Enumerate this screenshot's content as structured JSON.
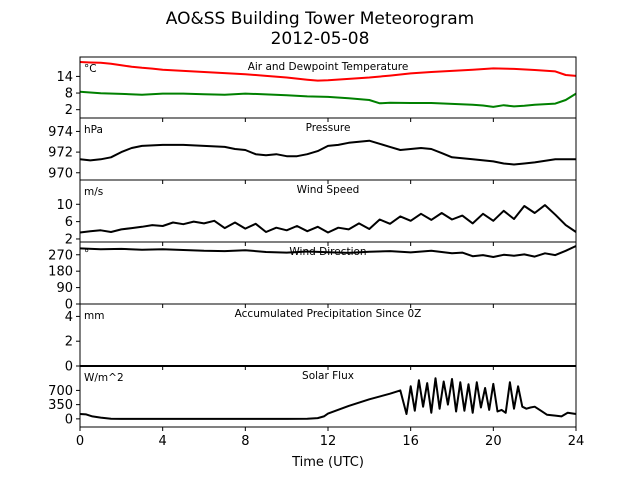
{
  "figure": {
    "title_line1": "AO&SS Building Tower Meteorogram",
    "title_line2": "2012-05-08",
    "xlabel": "Time (UTC)"
  },
  "chart_data": [
    {
      "type": "line",
      "title": "Air and Dewpoint Temperature",
      "unit_label": "°C",
      "xlim": [
        0,
        24
      ],
      "ylim": [
        -1,
        21
      ],
      "yticks": [
        2,
        8,
        14
      ],
      "series": [
        {
          "color": "#ff0000",
          "x": [
            0,
            0.5,
            1,
            1.5,
            2,
            2.5,
            3,
            3.5,
            4,
            5,
            6,
            7,
            8,
            9,
            10,
            11,
            11.5,
            12,
            13,
            14,
            15,
            16,
            17,
            18,
            19,
            20,
            21,
            22,
            23,
            23.5,
            24
          ],
          "y": [
            19.2,
            19,
            18.9,
            18.6,
            18,
            17.5,
            17.1,
            16.8,
            16.4,
            16,
            15.6,
            15.2,
            14.8,
            14.2,
            13.6,
            12.8,
            12.5,
            12.6,
            13.1,
            13.6,
            14.3,
            15.1,
            15.6,
            16,
            16.4,
            16.9,
            16.7,
            16.3,
            15.8,
            14.5,
            14.2
          ]
        },
        {
          "color": "#008000",
          "x": [
            0,
            0.5,
            1,
            2,
            3,
            4,
            5,
            6,
            7,
            8,
            9,
            10,
            11,
            12,
            13,
            13.5,
            14,
            14.5,
            15,
            16,
            17,
            18,
            19,
            19.5,
            20,
            20.5,
            21,
            21.5,
            22,
            23,
            23.5,
            24
          ],
          "y": [
            8.5,
            8.2,
            7.9,
            7.7,
            7.4,
            7.8,
            7.8,
            7.6,
            7.4,
            7.8,
            7.5,
            7.2,
            6.8,
            6.6,
            6.1,
            5.8,
            5.5,
            4.3,
            4.5,
            4.4,
            4.4,
            4.1,
            3.8,
            3.5,
            3,
            3.6,
            3.2,
            3.4,
            3.8,
            4.2,
            5.5,
            7.8
          ]
        }
      ]
    },
    {
      "type": "line",
      "title": "Pressure",
      "unit_label": "hPa",
      "xlim": [
        0,
        24
      ],
      "ylim": [
        969.3,
        975.3
      ],
      "yticks": [
        970,
        972,
        974
      ],
      "series": [
        {
          "color": "#000000",
          "x": [
            0,
            0.5,
            1,
            1.5,
            2,
            2.5,
            3,
            4,
            5,
            6,
            7,
            7.5,
            8,
            8.5,
            9,
            9.5,
            10,
            10.5,
            11,
            11.5,
            12,
            12.5,
            13,
            13.5,
            14,
            14.5,
            15,
            15.5,
            16,
            16.5,
            17,
            17.5,
            18,
            19,
            20,
            20.5,
            21,
            21.5,
            22,
            23,
            24
          ],
          "y": [
            971.3,
            971.2,
            971.3,
            971.5,
            972,
            972.4,
            972.6,
            972.7,
            972.7,
            972.6,
            972.5,
            972.3,
            972.2,
            971.8,
            971.7,
            971.8,
            971.6,
            971.6,
            971.8,
            972.1,
            972.6,
            972.7,
            972.9,
            973,
            973.1,
            972.8,
            972.5,
            972.2,
            972.3,
            972.4,
            972.3,
            971.9,
            971.5,
            971.3,
            971.1,
            970.9,
            970.8,
            970.9,
            971,
            971.3,
            971.3
          ]
        }
      ]
    },
    {
      "type": "line",
      "title": "Wind Speed",
      "unit_label": "m/s",
      "xlim": [
        0,
        24
      ],
      "ylim": [
        1.3,
        15.6
      ],
      "yticks": [
        2,
        6,
        10
      ],
      "series": [
        {
          "color": "#000000",
          "x": [
            0,
            0.5,
            1,
            1.5,
            2,
            2.5,
            3,
            3.5,
            4,
            4.5,
            5,
            5.5,
            6,
            6.5,
            7,
            7.5,
            8,
            8.5,
            9,
            9.5,
            10,
            10.5,
            11,
            11.5,
            12,
            12.5,
            13,
            13.5,
            14,
            14.5,
            15,
            15.5,
            16,
            16.5,
            17,
            17.5,
            18,
            18.5,
            19,
            19.5,
            20,
            20.5,
            21,
            21.5,
            22,
            22.5,
            23,
            23.5,
            24
          ],
          "y": [
            3.5,
            3.8,
            4,
            3.6,
            4.2,
            4.5,
            4.8,
            5.2,
            5,
            5.8,
            5.4,
            6,
            5.6,
            6.2,
            4.5,
            5.8,
            4.4,
            5.5,
            3.6,
            4.6,
            4,
            5,
            3.8,
            4.8,
            3.5,
            4.6,
            4.2,
            5.6,
            4.3,
            6.5,
            5.5,
            7.2,
            6.2,
            7.8,
            6.4,
            8,
            6.5,
            7.4,
            5.6,
            7.8,
            6.2,
            8.5,
            6.6,
            9.6,
            8,
            9.8,
            7.6,
            5.2,
            3.6
          ]
        }
      ]
    },
    {
      "type": "line",
      "title": "Wind Direction",
      "unit_label": "°",
      "xlim": [
        0,
        24
      ],
      "ylim": [
        0,
        340
      ],
      "yticks": [
        0,
        90,
        180,
        270
      ],
      "series": [
        {
          "color": "#000000",
          "x": [
            0,
            1,
            2,
            3,
            4,
            5,
            6,
            7,
            8,
            9,
            10,
            11,
            12,
            13,
            14,
            15,
            16,
            17,
            18,
            18.5,
            19,
            19.5,
            20,
            20.5,
            21,
            21.5,
            22,
            22.5,
            23,
            23.5,
            24
          ],
          "y": [
            305,
            300,
            302,
            298,
            300,
            296,
            292,
            290,
            295,
            285,
            282,
            288,
            284,
            280,
            286,
            290,
            283,
            292,
            278,
            282,
            262,
            268,
            258,
            270,
            265,
            272,
            260,
            278,
            268,
            292,
            318
          ]
        }
      ]
    },
    {
      "type": "line",
      "title": "Accumulated Precipitation Since 0Z",
      "unit_label": "mm",
      "xlim": [
        0,
        24
      ],
      "ylim": [
        0,
        5
      ],
      "yticks": [
        0,
        2,
        4
      ],
      "series": [
        {
          "color": "#000000",
          "x": [
            0,
            24
          ],
          "y": [
            0,
            0
          ]
        }
      ]
    },
    {
      "type": "line",
      "title": "Solar Flux",
      "unit_label": "W/m^2",
      "xlim": [
        0,
        24
      ],
      "ylim": [
        -200,
        1300
      ],
      "yticks": [
        0,
        350,
        700
      ],
      "series": [
        {
          "color": "#000000",
          "x": [
            0,
            0.3,
            0.6,
            1,
            1.5,
            2,
            3,
            4,
            5,
            6,
            7,
            8,
            9,
            10,
            11,
            11.5,
            11.8,
            12,
            13,
            14,
            15,
            15.5,
            15.8,
            16,
            16.2,
            16.4,
            16.6,
            16.8,
            17,
            17.2,
            17.4,
            17.6,
            17.8,
            18,
            18.2,
            18.4,
            18.6,
            18.8,
            19,
            19.2,
            19.4,
            19.6,
            19.8,
            20,
            20.2,
            20.4,
            20.6,
            20.8,
            21,
            21.2,
            21.4,
            21.6,
            21.8,
            22,
            22.3,
            22.6,
            23,
            23.3,
            23.6,
            24
          ],
          "y": [
            120,
            110,
            60,
            30,
            5,
            0,
            0,
            0,
            0,
            0,
            0,
            0,
            0,
            0,
            5,
            20,
            60,
            130,
            320,
            480,
            620,
            700,
            120,
            800,
            200,
            950,
            300,
            880,
            150,
            1000,
            250,
            920,
            350,
            980,
            180,
            900,
            200,
            850,
            150,
            900,
            280,
            760,
            220,
            860,
            180,
            220,
            150,
            900,
            250,
            800,
            300,
            250,
            280,
            300,
            200,
            100,
            80,
            60,
            150,
            120
          ]
        }
      ]
    }
  ],
  "xticks": [
    0,
    4,
    8,
    12,
    16,
    20,
    24
  ]
}
